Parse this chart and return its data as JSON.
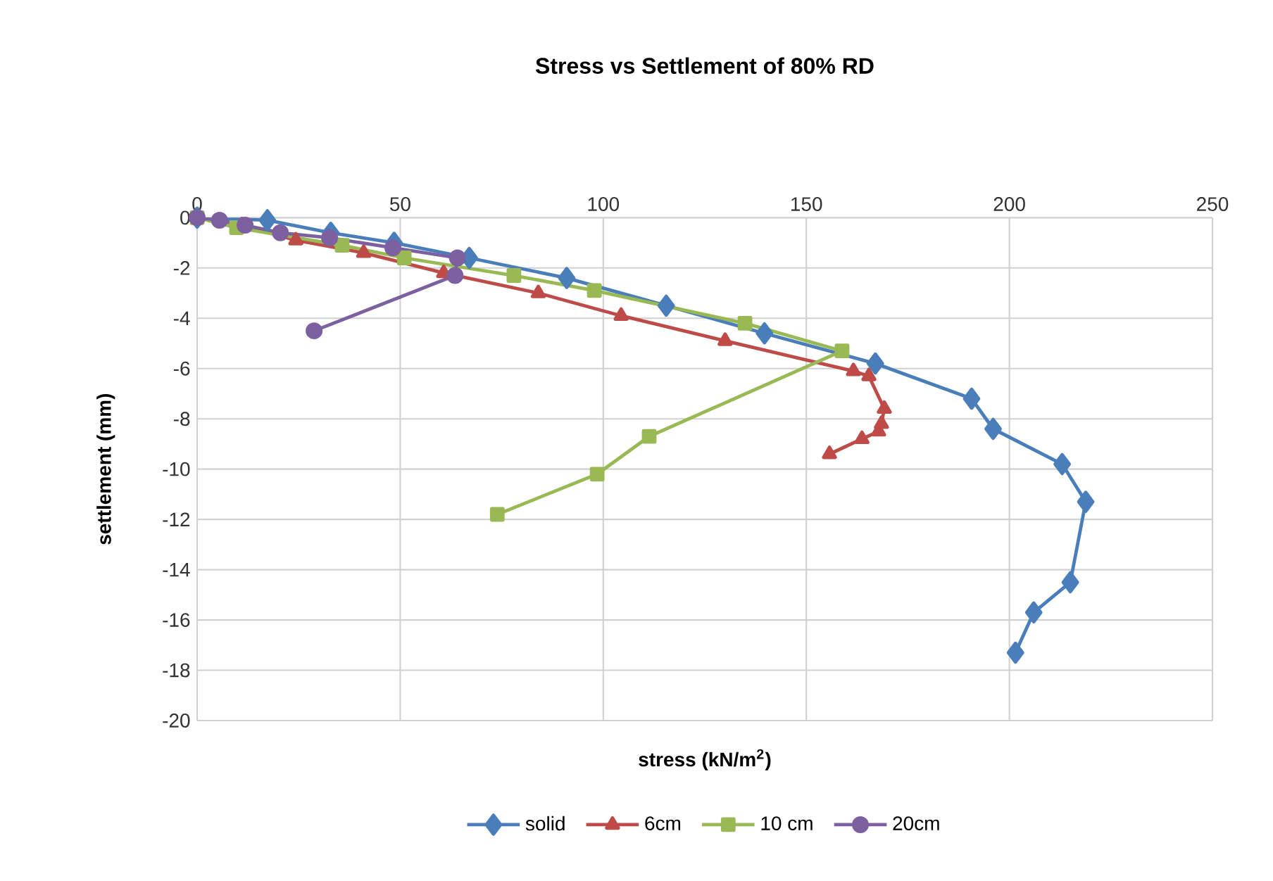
{
  "chart_data": {
    "type": "line",
    "title": "Stress vs Settlement of 80% RD",
    "xlabel": "stress (kN/m$^{2}$)",
    "ylabel": "settlement (mm)",
    "xlim": [
      0,
      250
    ],
    "xticks": [
      0,
      50,
      100,
      150,
      200,
      250
    ],
    "ylim": [
      -20,
      0
    ],
    "yticks": [
      -20,
      -18,
      -16,
      -14,
      -12,
      -10,
      -8,
      -6,
      -4,
      -2,
      0
    ],
    "grid": true,
    "legend": "bottom",
    "line_style": "solid",
    "series": [
      {
        "name": "solid",
        "color": "#4a7ebb",
        "marker": "diamond",
        "x": [
          0,
          17.3,
          32.9,
          48.5,
          67,
          91,
          115.5,
          139.7,
          167,
          190.7,
          196,
          213,
          218.8,
          215,
          206,
          201.5
        ],
        "values": [
          0,
          -0.1,
          -0.6,
          -1.0,
          -1.6,
          -2.4,
          -3.5,
          -4.6,
          -5.8,
          -7.2,
          -8.4,
          -9.8,
          -11.3,
          -14.5,
          -15.7,
          -17.3
        ]
      },
      {
        "name": "6cm",
        "color": "#be4b48",
        "marker": "triangle",
        "x": [
          0,
          11,
          24.3,
          41,
          60.7,
          84,
          104.4,
          130,
          161.6,
          165.4,
          169.2,
          168.5,
          167.8,
          163.7,
          155.7
        ],
        "values": [
          0,
          -0.3,
          -0.9,
          -1.4,
          -2.2,
          -3.0,
          -3.9,
          -4.9,
          -6.1,
          -6.3,
          -7.6,
          -8.2,
          -8.5,
          -8.8,
          -9.4
        ]
      },
      {
        "name": "10 cm",
        "color": "#98b954",
        "marker": "square",
        "x": [
          0,
          9.7,
          35.7,
          51,
          78,
          97.8,
          134.9,
          158.8,
          111.3,
          98.5,
          73.9
        ],
        "values": [
          0,
          -0.4,
          -1.1,
          -1.6,
          -2.3,
          -2.9,
          -4.2,
          -5.3,
          -8.7,
          -10.2,
          -11.8
        ]
      },
      {
        "name": "20cm",
        "color": "#7d60a0",
        "marker": "circle",
        "x": [
          0,
          5.5,
          11.8,
          20.5,
          32.6,
          48.2,
          64.1,
          63.5,
          28.8
        ],
        "values": [
          0,
          -0.1,
          -0.3,
          -0.6,
          -0.8,
          -1.2,
          -1.6,
          -2.3,
          -4.5
        ]
      }
    ]
  }
}
